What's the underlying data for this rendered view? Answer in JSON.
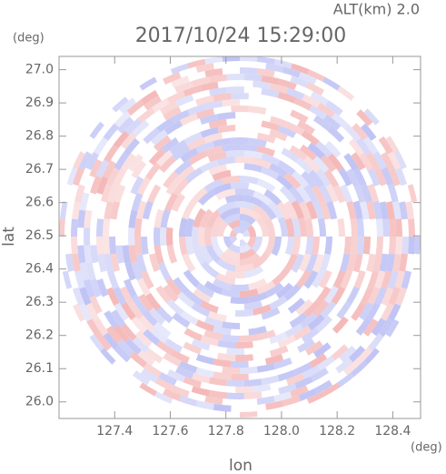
{
  "chart_data": {
    "type": "radar-ppi",
    "title": "2017/10/24 15:29:00",
    "subtitle": "ALT(km)  2.0",
    "x_label": "lon",
    "y_label": "lat",
    "x_unit": "(deg)",
    "y_unit": "(deg)",
    "xlim": [
      127.2,
      128.5
    ],
    "ylim": [
      25.95,
      27.04
    ],
    "xticks": [
      127.4,
      127.6,
      127.8,
      {
        "value": 128,
        "label": "128.0"
      },
      128.2,
      128.4
    ],
    "yticks": [
      {
        "value": 26,
        "label": "26.0"
      },
      26.1,
      26.2,
      26.3,
      26.4,
      26.5,
      26.6,
      26.7,
      26.8,
      26.9,
      {
        "value": 27,
        "label": "27.0"
      }
    ],
    "colors": [
      "#f4b4b4",
      "#bcc0f4"
    ]
  }
}
